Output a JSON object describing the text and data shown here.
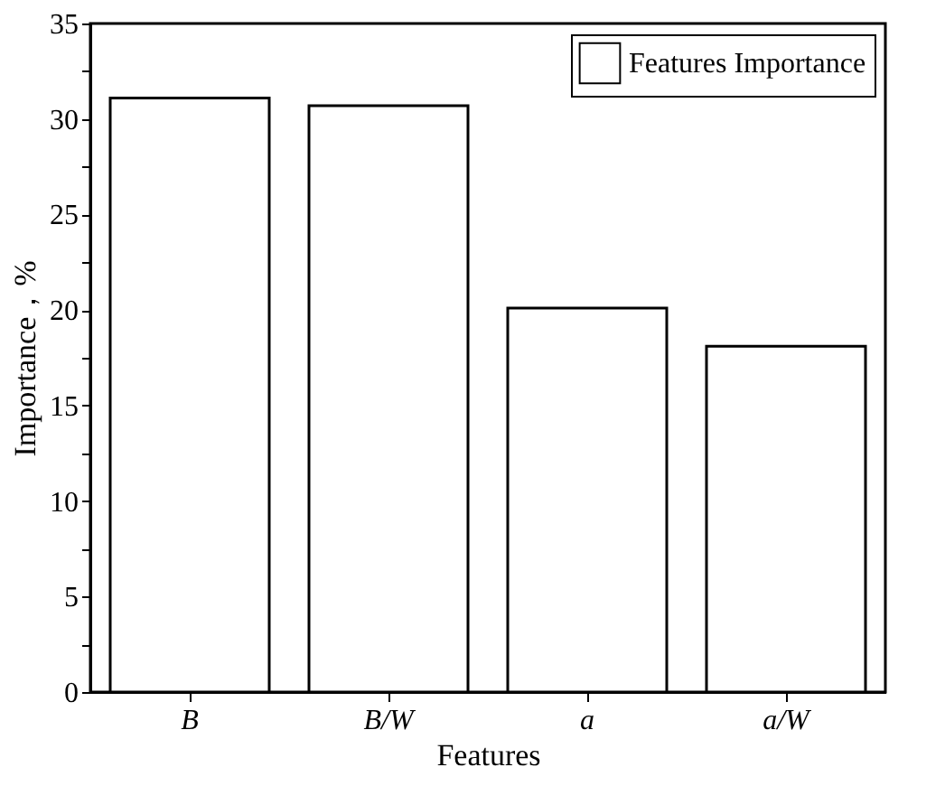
{
  "chart_data": {
    "type": "bar",
    "xlabel": "Features",
    "ylabel": "Importance，%",
    "categories": [
      "B",
      "B/W",
      "a",
      "a/W"
    ],
    "series": [
      {
        "name": "Features Importance",
        "color": "#ffffff",
        "values": [
          31.1,
          30.7,
          20.1,
          18.1
        ]
      }
    ],
    "ylim": [
      0,
      35
    ],
    "yticks": [
      0,
      {
        "value": 2.5,
        "label": null
      },
      5,
      {
        "value": 7.5,
        "label": null
      },
      10,
      {
        "value": 12.5,
        "label": null
      },
      15,
      {
        "value": 17.5,
        "label": null
      },
      20,
      {
        "value": 22.5,
        "label": null
      },
      25,
      {
        "value": 27.5,
        "label": null
      },
      30,
      {
        "value": 32.5,
        "label": null
      },
      35
    ],
    "legend": "top right",
    "grid": false
  }
}
